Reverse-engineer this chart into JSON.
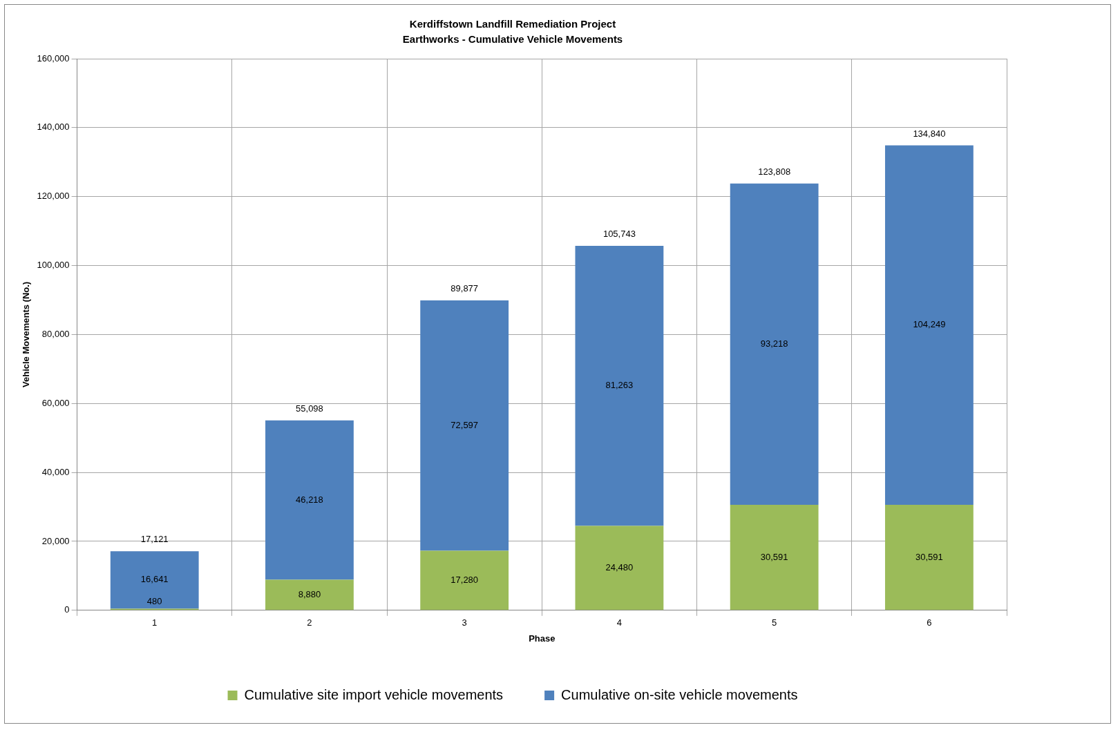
{
  "chart_data": {
    "type": "bar",
    "title": "Kerdiffstown Landfill Remediation Project",
    "subtitle": "Earthworks - Cumulative Vehicle Movements",
    "xlabel": "Phase",
    "ylabel": "Vehicle Movements (No.)",
    "categories": [
      "1",
      "2",
      "3",
      "4",
      "5",
      "6"
    ],
    "series": [
      {
        "name": "Cumulative site import vehicle movements",
        "color": "#9bbb59",
        "values": [
          480,
          8880,
          17280,
          24480,
          30591,
          30591
        ],
        "value_labels": [
          "480",
          "8,880",
          "17,280",
          "24,480",
          "30,591",
          "30,591"
        ]
      },
      {
        "name": "Cumulative on-site vehicle movements",
        "color": "#4f81bd",
        "values": [
          16641,
          46218,
          72597,
          81263,
          93218,
          104249
        ],
        "value_labels": [
          "16,641",
          "46,218",
          "72,597",
          "81,263",
          "93,218",
          "104,249"
        ]
      }
    ],
    "stacked": true,
    "totals": [
      "17,121",
      "55,098",
      "89,877",
      "105,743",
      "123,808",
      "134,840"
    ],
    "ylim": [
      0,
      160000
    ],
    "yticks": [
      0,
      {
        "value": 20000,
        "label": "20,000"
      },
      {
        "value": 40000,
        "label": "40,000"
      },
      {
        "value": 60000,
        "label": "60,000"
      },
      {
        "value": 80000,
        "label": "80,000"
      },
      {
        "value": 100000,
        "label": "100,000"
      },
      {
        "value": 120000,
        "label": "120,000"
      },
      {
        "value": 140000,
        "label": "140,000"
      },
      {
        "value": 160000,
        "label": "160,000"
      }
    ],
    "grid": true,
    "legend": "bottom"
  }
}
